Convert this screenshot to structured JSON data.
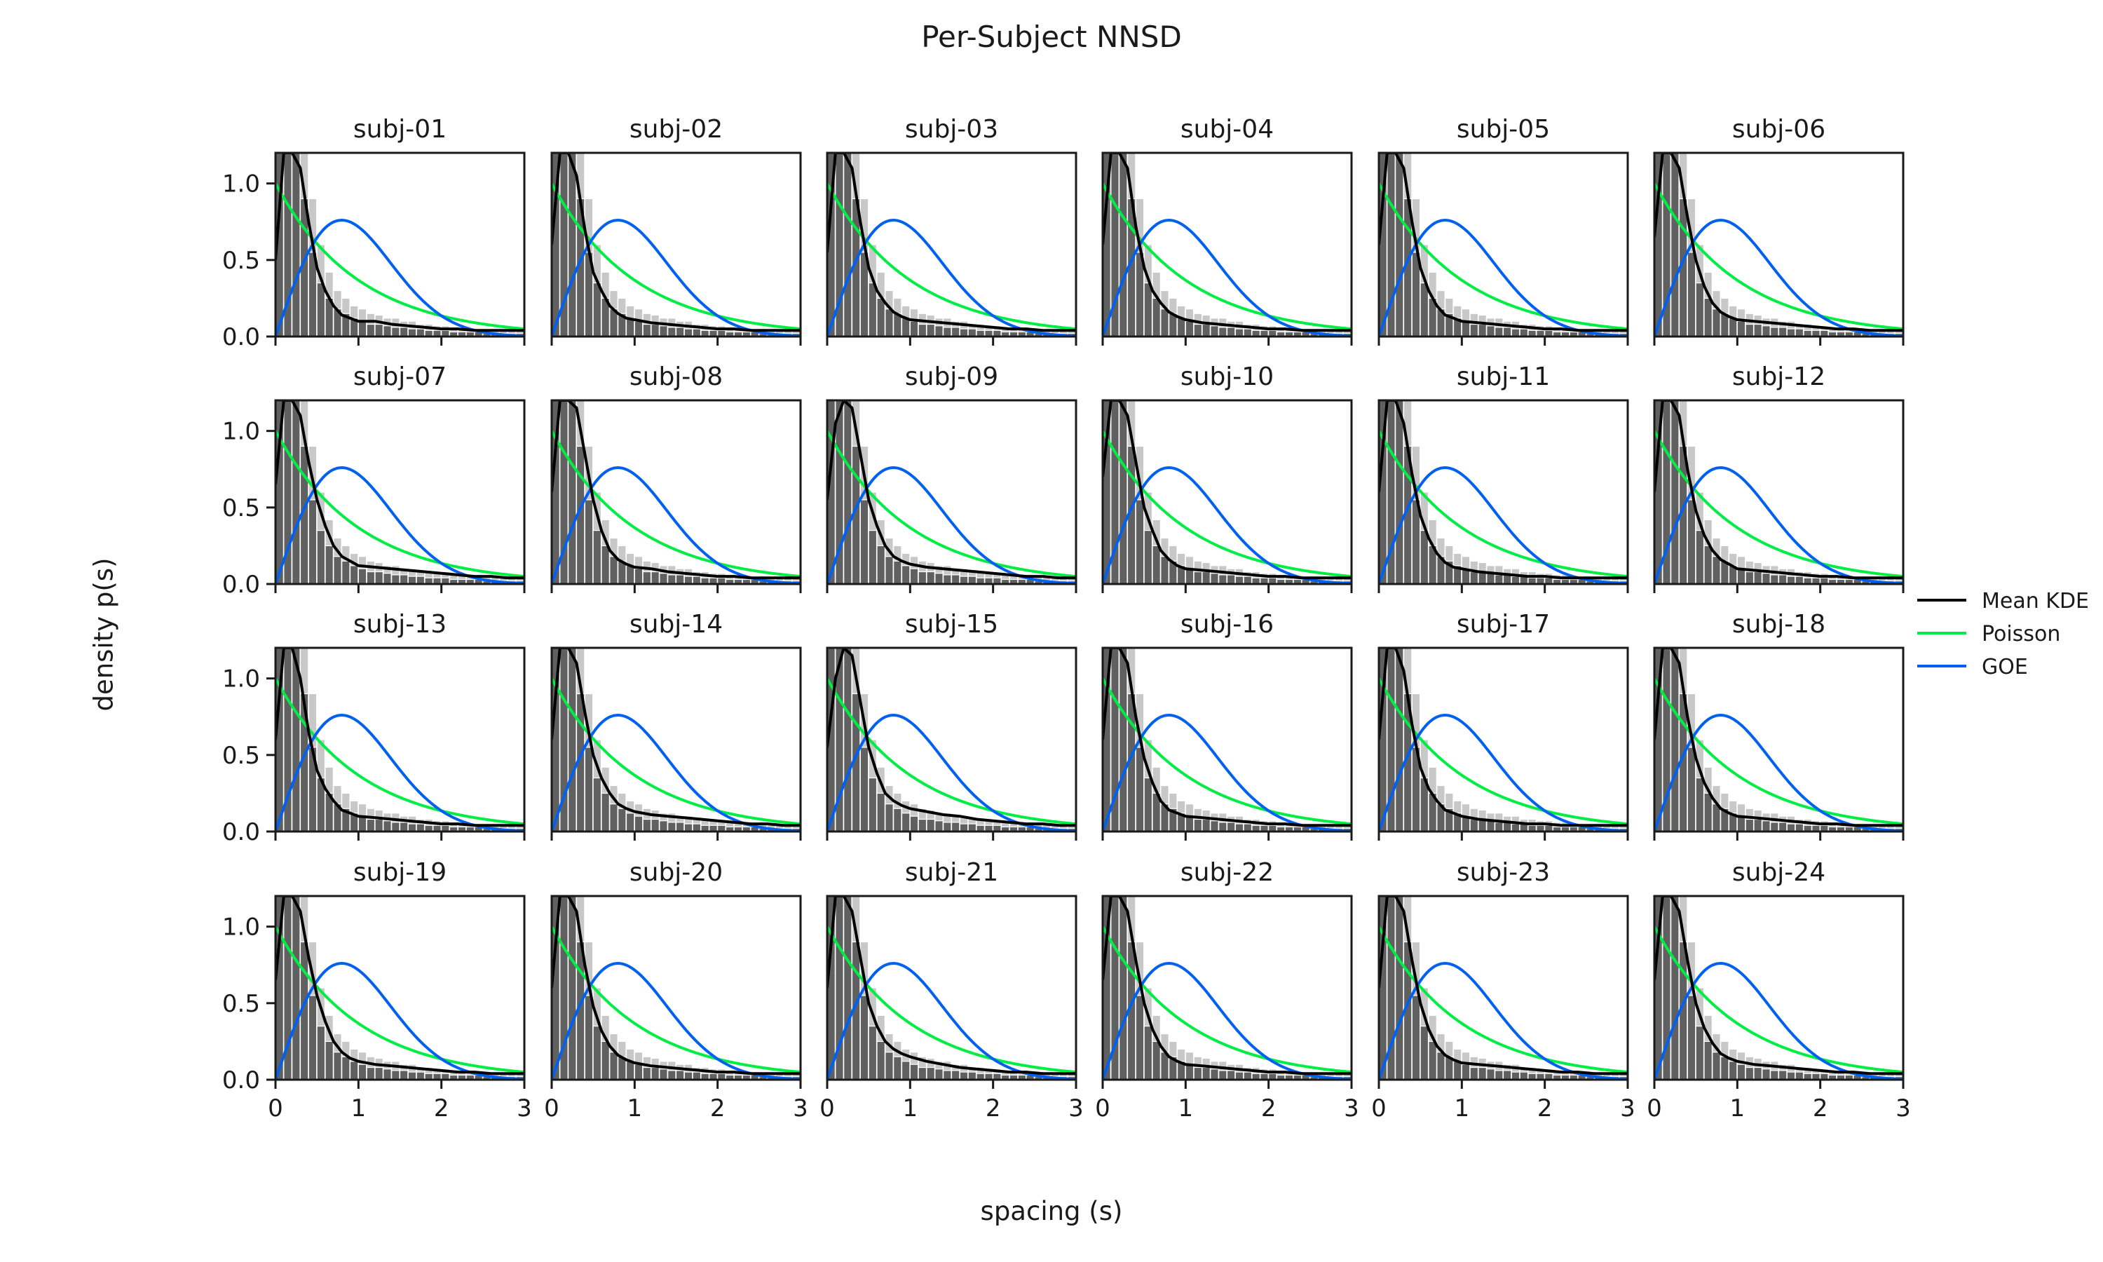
{
  "chart_data": {
    "type": "histogram",
    "title": "Per-Subject NNSD",
    "xlabel": "spacing (s)",
    "ylabel": "density p(s)",
    "xlim": [
      0,
      3
    ],
    "ylim": [
      0,
      1.2
    ],
    "xticks": [
      0,
      1,
      2,
      3
    ],
    "yticks": [
      0.0,
      0.5,
      1.0
    ],
    "ytick_labels": [
      "0.0",
      "0.5",
      "1.0"
    ],
    "grid": false,
    "legend_position": "center-right",
    "legend": [
      {
        "label": "Mean KDE",
        "color": "#000000"
      },
      {
        "label": "Poisson",
        "color": "#00ee44"
      },
      {
        "label": "GOE",
        "color": "#0060f0"
      }
    ],
    "reference_curves": {
      "Poisson": "p(s) = exp(-s)",
      "GOE": "p(s) = (pi/2) s exp(-pi s^2 / 4)"
    },
    "kde_x": [
      0.0,
      0.1,
      0.2,
      0.3,
      0.4,
      0.5,
      0.6,
      0.7,
      0.8,
      0.9,
      1.0,
      1.2,
      1.4,
      1.6,
      1.8,
      2.0,
      2.2,
      2.4,
      2.6,
      2.8,
      3.0
    ],
    "histogram": {
      "bin_edges": [
        0,
        0.1,
        0.2,
        0.3,
        0.4,
        0.5,
        0.6,
        0.7,
        0.8,
        0.9,
        1.0,
        1.1,
        1.2,
        1.3,
        1.4,
        1.5,
        1.6,
        1.7,
        1.8,
        1.9,
        2.0,
        2.1,
        2.2,
        2.3,
        2.4,
        2.5,
        2.6,
        2.7,
        2.8,
        2.9,
        3.0
      ],
      "dark_layer": [
        1.2,
        1.2,
        1.2,
        0.9,
        0.55,
        0.35,
        0.25,
        0.18,
        0.15,
        0.12,
        0.1,
        0.08,
        0.08,
        0.07,
        0.06,
        0.06,
        0.05,
        0.05,
        0.04,
        0.04,
        0.04,
        0.03,
        0.03,
        0.03,
        0.03,
        0.02,
        0.02,
        0.02,
        0.02,
        0.02
      ],
      "light_layer": [
        1.2,
        1.2,
        1.2,
        1.2,
        0.9,
        0.6,
        0.42,
        0.3,
        0.25,
        0.2,
        0.18,
        0.15,
        0.14,
        0.12,
        0.12,
        0.1,
        0.1,
        0.08,
        0.08,
        0.07,
        0.07,
        0.06,
        0.06,
        0.05,
        0.05,
        0.05,
        0.05,
        0.04,
        0.04,
        0.04
      ]
    },
    "panels": [
      {
        "name": "subj-01",
        "kde_y": [
          0.5,
          1.2,
          1.2,
          1.1,
          0.75,
          0.45,
          0.3,
          0.2,
          0.14,
          0.12,
          0.1,
          0.1,
          0.08,
          0.07,
          0.06,
          0.05,
          0.05,
          0.04,
          0.04,
          0.04,
          0.04
        ]
      },
      {
        "name": "subj-02",
        "kde_y": [
          0.6,
          1.2,
          1.2,
          1.05,
          0.7,
          0.42,
          0.3,
          0.2,
          0.15,
          0.12,
          0.11,
          0.09,
          0.08,
          0.07,
          0.06,
          0.05,
          0.05,
          0.04,
          0.04,
          0.04,
          0.04
        ]
      },
      {
        "name": "subj-03",
        "kde_y": [
          0.55,
          1.2,
          1.2,
          1.1,
          0.75,
          0.45,
          0.3,
          0.22,
          0.16,
          0.13,
          0.11,
          0.1,
          0.09,
          0.08,
          0.07,
          0.06,
          0.05,
          0.05,
          0.04,
          0.04,
          0.04
        ]
      },
      {
        "name": "subj-04",
        "kde_y": [
          0.6,
          1.2,
          1.2,
          1.1,
          0.72,
          0.45,
          0.3,
          0.22,
          0.16,
          0.13,
          0.11,
          0.09,
          0.08,
          0.07,
          0.06,
          0.05,
          0.05,
          0.04,
          0.04,
          0.04,
          0.04
        ]
      },
      {
        "name": "subj-05",
        "kde_y": [
          0.6,
          1.2,
          1.2,
          1.1,
          0.75,
          0.45,
          0.3,
          0.2,
          0.14,
          0.12,
          0.1,
          0.09,
          0.08,
          0.07,
          0.06,
          0.05,
          0.05,
          0.04,
          0.04,
          0.04,
          0.04
        ]
      },
      {
        "name": "subj-06",
        "kde_y": [
          0.65,
          1.2,
          1.2,
          1.1,
          0.78,
          0.5,
          0.33,
          0.22,
          0.16,
          0.13,
          0.11,
          0.1,
          0.09,
          0.08,
          0.07,
          0.06,
          0.05,
          0.05,
          0.04,
          0.04,
          0.04
        ]
      },
      {
        "name": "subj-07",
        "kde_y": [
          0.65,
          1.2,
          1.2,
          1.1,
          0.8,
          0.55,
          0.38,
          0.25,
          0.18,
          0.15,
          0.12,
          0.11,
          0.1,
          0.09,
          0.08,
          0.07,
          0.06,
          0.05,
          0.05,
          0.04,
          0.04
        ]
      },
      {
        "name": "subj-08",
        "kde_y": [
          0.6,
          1.2,
          1.2,
          1.15,
          0.85,
          0.55,
          0.35,
          0.22,
          0.16,
          0.13,
          0.11,
          0.1,
          0.08,
          0.07,
          0.06,
          0.05,
          0.05,
          0.04,
          0.04,
          0.04,
          0.04
        ]
      },
      {
        "name": "subj-09",
        "kde_y": [
          0.55,
          1.05,
          1.2,
          1.15,
          0.85,
          0.55,
          0.38,
          0.25,
          0.18,
          0.15,
          0.13,
          0.11,
          0.1,
          0.09,
          0.08,
          0.07,
          0.06,
          0.05,
          0.05,
          0.04,
          0.04
        ]
      },
      {
        "name": "subj-10",
        "kde_y": [
          0.7,
          1.2,
          1.2,
          1.1,
          0.8,
          0.5,
          0.35,
          0.22,
          0.16,
          0.12,
          0.1,
          0.09,
          0.08,
          0.07,
          0.06,
          0.05,
          0.05,
          0.04,
          0.04,
          0.04,
          0.04
        ]
      },
      {
        "name": "subj-11",
        "kde_y": [
          0.6,
          1.2,
          1.2,
          1.05,
          0.72,
          0.45,
          0.3,
          0.2,
          0.14,
          0.11,
          0.1,
          0.08,
          0.07,
          0.06,
          0.05,
          0.05,
          0.04,
          0.04,
          0.04,
          0.04,
          0.04
        ]
      },
      {
        "name": "subj-12",
        "kde_y": [
          0.6,
          1.2,
          1.2,
          1.1,
          0.75,
          0.48,
          0.32,
          0.22,
          0.16,
          0.13,
          0.1,
          0.09,
          0.08,
          0.07,
          0.06,
          0.05,
          0.05,
          0.04,
          0.04,
          0.04,
          0.04
        ]
      },
      {
        "name": "subj-13",
        "kde_y": [
          0.6,
          1.2,
          1.2,
          1.0,
          0.65,
          0.4,
          0.28,
          0.2,
          0.14,
          0.12,
          0.1,
          0.09,
          0.08,
          0.07,
          0.06,
          0.05,
          0.05,
          0.04,
          0.04,
          0.04,
          0.04
        ]
      },
      {
        "name": "subj-14",
        "kde_y": [
          0.6,
          1.2,
          1.2,
          1.1,
          0.78,
          0.5,
          0.35,
          0.25,
          0.18,
          0.15,
          0.13,
          0.11,
          0.1,
          0.09,
          0.08,
          0.07,
          0.06,
          0.05,
          0.05,
          0.04,
          0.04
        ]
      },
      {
        "name": "subj-15",
        "kde_y": [
          0.55,
          1.0,
          1.2,
          1.15,
          0.85,
          0.55,
          0.38,
          0.25,
          0.2,
          0.17,
          0.15,
          0.13,
          0.11,
          0.1,
          0.08,
          0.07,
          0.06,
          0.05,
          0.05,
          0.04,
          0.04
        ]
      },
      {
        "name": "subj-16",
        "kde_y": [
          0.6,
          1.2,
          1.2,
          1.1,
          0.75,
          0.48,
          0.32,
          0.2,
          0.14,
          0.12,
          0.1,
          0.09,
          0.08,
          0.07,
          0.06,
          0.05,
          0.05,
          0.04,
          0.04,
          0.04,
          0.04
        ]
      },
      {
        "name": "subj-17",
        "kde_y": [
          0.6,
          1.2,
          1.2,
          1.05,
          0.7,
          0.42,
          0.28,
          0.2,
          0.14,
          0.12,
          0.1,
          0.08,
          0.07,
          0.06,
          0.05,
          0.05,
          0.04,
          0.04,
          0.04,
          0.04,
          0.04
        ]
      },
      {
        "name": "subj-18",
        "kde_y": [
          0.6,
          1.2,
          1.2,
          1.1,
          0.75,
          0.48,
          0.32,
          0.22,
          0.15,
          0.12,
          0.1,
          0.09,
          0.08,
          0.07,
          0.06,
          0.05,
          0.05,
          0.04,
          0.04,
          0.04,
          0.04
        ]
      },
      {
        "name": "subj-19",
        "kde_y": [
          0.65,
          1.2,
          1.2,
          1.1,
          0.8,
          0.55,
          0.38,
          0.25,
          0.18,
          0.14,
          0.12,
          0.1,
          0.09,
          0.08,
          0.07,
          0.06,
          0.05,
          0.05,
          0.04,
          0.04,
          0.04
        ]
      },
      {
        "name": "subj-20",
        "kde_y": [
          0.6,
          1.2,
          1.2,
          1.1,
          0.75,
          0.48,
          0.32,
          0.22,
          0.16,
          0.13,
          0.11,
          0.09,
          0.08,
          0.07,
          0.06,
          0.05,
          0.05,
          0.04,
          0.04,
          0.04,
          0.04
        ]
      },
      {
        "name": "subj-21",
        "kde_y": [
          0.6,
          1.2,
          1.2,
          1.1,
          0.8,
          0.5,
          0.35,
          0.25,
          0.2,
          0.17,
          0.15,
          0.12,
          0.1,
          0.08,
          0.07,
          0.06,
          0.05,
          0.05,
          0.04,
          0.04,
          0.04
        ]
      },
      {
        "name": "subj-22",
        "kde_y": [
          0.65,
          1.2,
          1.2,
          1.1,
          0.78,
          0.5,
          0.33,
          0.22,
          0.15,
          0.12,
          0.1,
          0.09,
          0.08,
          0.07,
          0.06,
          0.05,
          0.05,
          0.04,
          0.04,
          0.04,
          0.04
        ]
      },
      {
        "name": "subj-23",
        "kde_y": [
          0.6,
          1.2,
          1.2,
          1.1,
          0.78,
          0.5,
          0.33,
          0.22,
          0.16,
          0.13,
          0.11,
          0.1,
          0.09,
          0.08,
          0.07,
          0.06,
          0.05,
          0.05,
          0.04,
          0.04,
          0.04
        ]
      },
      {
        "name": "subj-24",
        "kde_y": [
          0.65,
          1.2,
          1.2,
          1.1,
          0.78,
          0.5,
          0.34,
          0.24,
          0.17,
          0.14,
          0.12,
          0.1,
          0.09,
          0.08,
          0.07,
          0.06,
          0.05,
          0.05,
          0.04,
          0.04,
          0.04
        ]
      }
    ]
  },
  "colors": {
    "kde": "#000000",
    "poisson": "#00ee44",
    "goe": "#0060f0",
    "hist_dark": "#4d4d4d",
    "hist_light": "#c8c8c8",
    "axis": "#1a1a1a"
  }
}
